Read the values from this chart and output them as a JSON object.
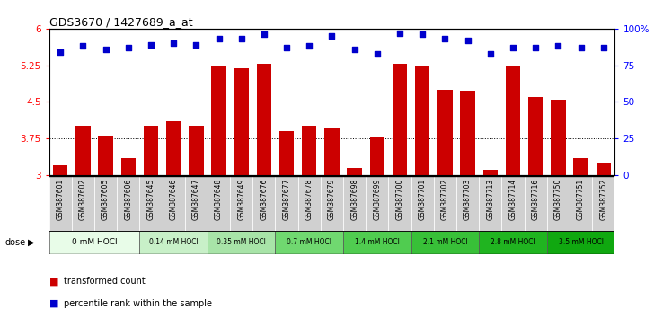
{
  "title": "GDS3670 / 1427689_a_at",
  "samples": [
    "GSM387601",
    "GSM387602",
    "GSM387605",
    "GSM387606",
    "GSM387645",
    "GSM387646",
    "GSM387647",
    "GSM387648",
    "GSM387649",
    "GSM387676",
    "GSM387677",
    "GSM387678",
    "GSM387679",
    "GSM387698",
    "GSM387699",
    "GSM387700",
    "GSM387701",
    "GSM387702",
    "GSM387703",
    "GSM387713",
    "GSM387714",
    "GSM387716",
    "GSM387750",
    "GSM387751",
    "GSM387752"
  ],
  "bar_values": [
    3.2,
    4.0,
    3.8,
    3.35,
    4.0,
    4.1,
    4.0,
    5.22,
    5.18,
    5.28,
    3.9,
    4.0,
    3.95,
    3.15,
    3.78,
    5.27,
    5.22,
    4.75,
    4.72,
    3.1,
    5.25,
    4.6,
    4.55,
    3.35,
    3.25
  ],
  "percentile_values": [
    84,
    88,
    86,
    87,
    89,
    90,
    89,
    93,
    93,
    96,
    87,
    88,
    95,
    86,
    83,
    97,
    96,
    93,
    92,
    83,
    87,
    87,
    88,
    87,
    87
  ],
  "dose_groups": [
    {
      "label": "0 mM HOCl",
      "count": 4
    },
    {
      "label": "0.14 mM HOCl",
      "count": 3
    },
    {
      "label": "0.35 mM HOCl",
      "count": 3
    },
    {
      "label": "0.7 mM HOCl",
      "count": 3
    },
    {
      "label": "1.4 mM HOCl",
      "count": 3
    },
    {
      "label": "2.1 mM HOCl",
      "count": 3
    },
    {
      "label": "2.8 mM HOCl",
      "count": 3
    },
    {
      "label": "3.5 mM HOCl",
      "count": 3
    }
  ],
  "dose_colors": [
    "#e8fce8",
    "#c8f0c8",
    "#a8e4a8",
    "#70d870",
    "#50cc50",
    "#38c038",
    "#20b420",
    "#10a810"
  ],
  "ylim": [
    3.0,
    6.0
  ],
  "yticks": [
    3.0,
    3.75,
    4.5,
    5.25,
    6.0
  ],
  "ytick_labels": [
    "3",
    "3.75",
    "4.5",
    "5.25",
    "6"
  ],
  "right_yticks": [
    0,
    25,
    50,
    75,
    100
  ],
  "right_ylabels": [
    "0",
    "25",
    "50",
    "75",
    "100%"
  ],
  "bar_color": "#cc0000",
  "dot_color": "#0000cc",
  "background_color": "#ffffff",
  "dose_label": "dose",
  "label_area_color": "#c8c8c8",
  "cell_border_color": "#a0a0a0"
}
